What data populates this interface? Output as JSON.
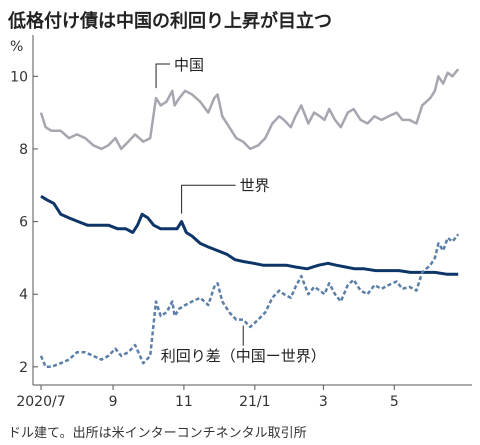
{
  "chart_data": {
    "type": "line",
    "title": "低格付け債は中国の利回り上昇が目立つ",
    "unit": "%",
    "note": "ドル建て。出所は米インターコンチネンタル取引所",
    "ylim": [
      1.5,
      11.0
    ],
    "yticks": [
      2,
      4,
      6,
      8,
      10
    ],
    "x_range": [
      "2020-07-01",
      "2021-06-30"
    ],
    "xticks": [
      {
        "date": "2020-07-01",
        "label": "2020/7"
      },
      {
        "date": "2020-09-01",
        "label": "9"
      },
      {
        "date": "2020-11-01",
        "label": "11"
      },
      {
        "date": "2021-01-01",
        "label": "21/1"
      },
      {
        "date": "2021-03-01",
        "label": "3"
      },
      {
        "date": "2021-05-01",
        "label": "5"
      }
    ],
    "grid": false,
    "colors": {
      "中国": "#a6a6b0",
      "世界": "#0d3567",
      "利回り差": "#5b7fa6"
    },
    "series": [
      {
        "name": "中国",
        "style": "solid",
        "points": [
          [
            "2020-07-01",
            9.0
          ],
          [
            "2020-07-05",
            8.6
          ],
          [
            "2020-07-10",
            8.5
          ],
          [
            "2020-07-18",
            8.5
          ],
          [
            "2020-07-25",
            8.3
          ],
          [
            "2020-08-01",
            8.4
          ],
          [
            "2020-08-08",
            8.3
          ],
          [
            "2020-08-15",
            8.1
          ],
          [
            "2020-08-22",
            8.0
          ],
          [
            "2020-08-28",
            8.1
          ],
          [
            "2020-09-03",
            8.3
          ],
          [
            "2020-09-08",
            8.0
          ],
          [
            "2020-09-14",
            8.2
          ],
          [
            "2020-09-20",
            8.4
          ],
          [
            "2020-09-27",
            8.2
          ],
          [
            "2020-10-03",
            8.3
          ],
          [
            "2020-10-08",
            9.4
          ],
          [
            "2020-10-12",
            9.2
          ],
          [
            "2020-10-17",
            9.3
          ],
          [
            "2020-10-22",
            9.6
          ],
          [
            "2020-10-24",
            9.2
          ],
          [
            "2020-10-28",
            9.4
          ],
          [
            "2020-11-02",
            9.6
          ],
          [
            "2020-11-08",
            9.5
          ],
          [
            "2020-11-15",
            9.3
          ],
          [
            "2020-11-22",
            9.0
          ],
          [
            "2020-11-27",
            9.4
          ],
          [
            "2020-11-30",
            9.5
          ],
          [
            "2020-12-04",
            8.9
          ],
          [
            "2020-12-10",
            8.6
          ],
          [
            "2020-12-16",
            8.3
          ],
          [
            "2020-12-22",
            8.2
          ],
          [
            "2020-12-28",
            8.0
          ],
          [
            "2021-01-04",
            8.1
          ],
          [
            "2021-01-10",
            8.3
          ],
          [
            "2021-01-16",
            8.7
          ],
          [
            "2021-01-22",
            8.9
          ],
          [
            "2021-01-26",
            8.8
          ],
          [
            "2021-02-01",
            8.6
          ],
          [
            "2021-02-05",
            8.9
          ],
          [
            "2021-02-10",
            9.2
          ],
          [
            "2021-02-16",
            8.7
          ],
          [
            "2021-02-21",
            9.0
          ],
          [
            "2021-02-26",
            8.9
          ],
          [
            "2021-03-02",
            8.8
          ],
          [
            "2021-03-06",
            9.1
          ],
          [
            "2021-03-11",
            8.8
          ],
          [
            "2021-03-16",
            8.6
          ],
          [
            "2021-03-22",
            9.0
          ],
          [
            "2021-03-27",
            9.1
          ],
          [
            "2021-04-02",
            8.8
          ],
          [
            "2021-04-08",
            8.7
          ],
          [
            "2021-04-14",
            8.9
          ],
          [
            "2021-04-20",
            8.8
          ],
          [
            "2021-04-26",
            8.9
          ],
          [
            "2021-05-03",
            9.0
          ],
          [
            "2021-05-08",
            8.8
          ],
          [
            "2021-05-14",
            8.8
          ],
          [
            "2021-05-20",
            8.7
          ],
          [
            "2021-05-25",
            9.2
          ],
          [
            "2021-06-01",
            9.4
          ],
          [
            "2021-06-05",
            9.6
          ],
          [
            "2021-06-08",
            10.0
          ],
          [
            "2021-06-12",
            9.8
          ],
          [
            "2021-06-16",
            10.1
          ],
          [
            "2021-06-20",
            10.0
          ],
          [
            "2021-06-25",
            10.2
          ]
        ]
      },
      {
        "name": "世界",
        "style": "solid",
        "points": [
          [
            "2020-07-01",
            6.7
          ],
          [
            "2020-07-06",
            6.6
          ],
          [
            "2020-07-12",
            6.5
          ],
          [
            "2020-07-18",
            6.2
          ],
          [
            "2020-07-25",
            6.1
          ],
          [
            "2020-08-02",
            6.0
          ],
          [
            "2020-08-10",
            5.9
          ],
          [
            "2020-08-20",
            5.9
          ],
          [
            "2020-08-28",
            5.9
          ],
          [
            "2020-09-05",
            5.8
          ],
          [
            "2020-09-12",
            5.8
          ],
          [
            "2020-09-18",
            5.7
          ],
          [
            "2020-09-22",
            5.9
          ],
          [
            "2020-09-26",
            6.2
          ],
          [
            "2020-10-01",
            6.1
          ],
          [
            "2020-10-06",
            5.9
          ],
          [
            "2020-10-12",
            5.8
          ],
          [
            "2020-10-20",
            5.8
          ],
          [
            "2020-10-26",
            5.8
          ],
          [
            "2020-10-30",
            6.0
          ],
          [
            "2020-11-03",
            5.7
          ],
          [
            "2020-11-08",
            5.6
          ],
          [
            "2020-11-15",
            5.4
          ],
          [
            "2020-11-22",
            5.3
          ],
          [
            "2020-11-30",
            5.2
          ],
          [
            "2020-12-08",
            5.1
          ],
          [
            "2020-12-15",
            4.95
          ],
          [
            "2020-12-22",
            4.9
          ],
          [
            "2020-12-31",
            4.85
          ],
          [
            "2021-01-08",
            4.8
          ],
          [
            "2021-01-18",
            4.8
          ],
          [
            "2021-01-28",
            4.8
          ],
          [
            "2021-02-05",
            4.75
          ],
          [
            "2021-02-15",
            4.7
          ],
          [
            "2021-02-25",
            4.8
          ],
          [
            "2021-03-05",
            4.85
          ],
          [
            "2021-03-12",
            4.8
          ],
          [
            "2021-03-20",
            4.75
          ],
          [
            "2021-03-28",
            4.7
          ],
          [
            "2021-04-05",
            4.7
          ],
          [
            "2021-04-15",
            4.65
          ],
          [
            "2021-04-25",
            4.65
          ],
          [
            "2021-05-05",
            4.65
          ],
          [
            "2021-05-15",
            4.6
          ],
          [
            "2021-05-25",
            4.6
          ],
          [
            "2021-06-05",
            4.6
          ],
          [
            "2021-06-15",
            4.55
          ],
          [
            "2021-06-25",
            4.55
          ]
        ]
      },
      {
        "name": "利回り差（中国ー世界）",
        "style": "dashed",
        "points": [
          [
            "2020-07-01",
            2.3
          ],
          [
            "2020-07-05",
            2.0
          ],
          [
            "2020-07-10",
            2.0
          ],
          [
            "2020-07-18",
            2.1
          ],
          [
            "2020-07-25",
            2.2
          ],
          [
            "2020-08-01",
            2.4
          ],
          [
            "2020-08-08",
            2.4
          ],
          [
            "2020-08-15",
            2.3
          ],
          [
            "2020-08-22",
            2.2
          ],
          [
            "2020-08-28",
            2.3
          ],
          [
            "2020-09-03",
            2.5
          ],
          [
            "2020-09-08",
            2.3
          ],
          [
            "2020-09-14",
            2.4
          ],
          [
            "2020-09-20",
            2.6
          ],
          [
            "2020-09-27",
            2.1
          ],
          [
            "2020-10-03",
            2.3
          ],
          [
            "2020-10-08",
            3.8
          ],
          [
            "2020-10-12",
            3.4
          ],
          [
            "2020-10-17",
            3.5
          ],
          [
            "2020-10-22",
            3.8
          ],
          [
            "2020-10-24",
            3.4
          ],
          [
            "2020-10-28",
            3.6
          ],
          [
            "2020-11-02",
            3.7
          ],
          [
            "2020-11-08",
            3.8
          ],
          [
            "2020-11-15",
            3.9
          ],
          [
            "2020-11-22",
            3.7
          ],
          [
            "2020-11-27",
            4.2
          ],
          [
            "2020-11-30",
            4.3
          ],
          [
            "2020-12-04",
            3.8
          ],
          [
            "2020-12-10",
            3.5
          ],
          [
            "2020-12-16",
            3.3
          ],
          [
            "2020-12-22",
            3.3
          ],
          [
            "2020-12-28",
            3.1
          ],
          [
            "2021-01-04",
            3.3
          ],
          [
            "2021-01-10",
            3.5
          ],
          [
            "2021-01-16",
            3.9
          ],
          [
            "2021-01-22",
            4.1
          ],
          [
            "2021-01-26",
            4.0
          ],
          [
            "2021-02-01",
            3.9
          ],
          [
            "2021-02-05",
            4.2
          ],
          [
            "2021-02-10",
            4.5
          ],
          [
            "2021-02-16",
            4.0
          ],
          [
            "2021-02-21",
            4.2
          ],
          [
            "2021-02-26",
            4.1
          ],
          [
            "2021-03-02",
            4.0
          ],
          [
            "2021-03-06",
            4.3
          ],
          [
            "2021-03-11",
            4.0
          ],
          [
            "2021-03-16",
            3.8
          ],
          [
            "2021-03-22",
            4.25
          ],
          [
            "2021-03-27",
            4.4
          ],
          [
            "2021-04-02",
            4.1
          ],
          [
            "2021-04-08",
            4.0
          ],
          [
            "2021-04-14",
            4.25
          ],
          [
            "2021-04-20",
            4.15
          ],
          [
            "2021-04-26",
            4.25
          ],
          [
            "2021-05-03",
            4.35
          ],
          [
            "2021-05-08",
            4.15
          ],
          [
            "2021-05-14",
            4.2
          ],
          [
            "2021-05-20",
            4.1
          ],
          [
            "2021-05-25",
            4.6
          ],
          [
            "2021-06-01",
            4.8
          ],
          [
            "2021-06-05",
            5.0
          ],
          [
            "2021-06-08",
            5.4
          ],
          [
            "2021-06-12",
            5.2
          ],
          [
            "2021-06-16",
            5.55
          ],
          [
            "2021-06-20",
            5.45
          ],
          [
            "2021-06-25",
            5.65
          ]
        ]
      }
    ],
    "labels": [
      {
        "text": "中国",
        "series": 0,
        "anchor_date": "2020-10-08"
      },
      {
        "text": "世界",
        "series": 1,
        "anchor_date": "2020-10-30"
      },
      {
        "text": "利回り差（中国ー世界）",
        "series": 2,
        "anchor_date": "2020-12-22"
      }
    ]
  }
}
